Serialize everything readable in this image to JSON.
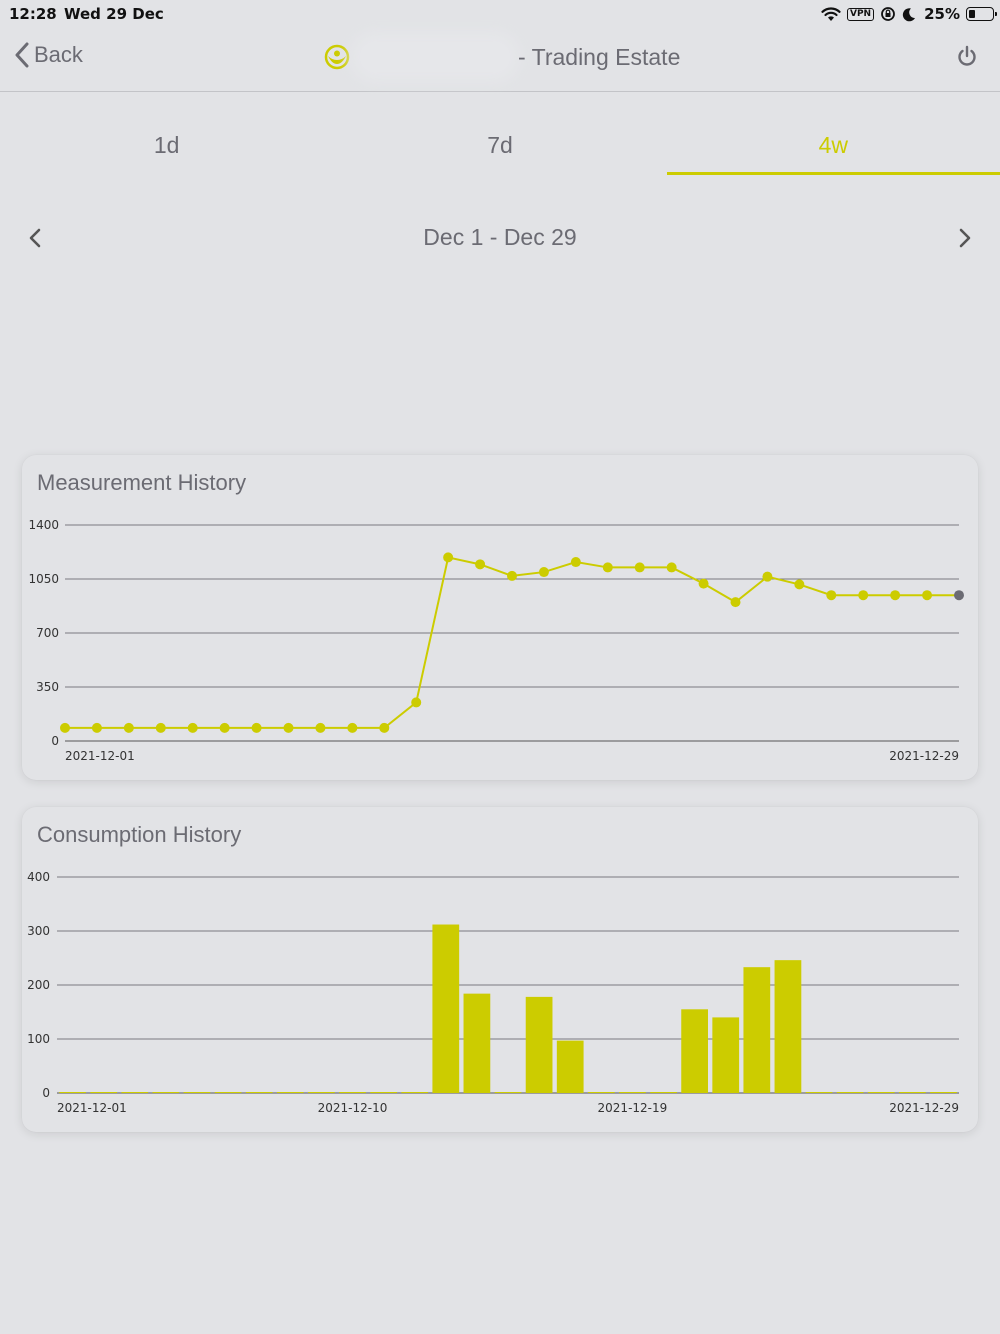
{
  "status_bar": {
    "time": "12:28",
    "date": "Wed 29 Dec",
    "vpn": "VPN",
    "battery_percent": "25%",
    "battery_level": 0.25
  },
  "nav": {
    "back_label": "Back",
    "title_suffix": "- Trading Estate",
    "accent": "#cccc00"
  },
  "tabs": [
    {
      "label": "1d",
      "active": false
    },
    {
      "label": "7d",
      "active": false
    },
    {
      "label": "4w",
      "active": true
    }
  ],
  "range": {
    "label": "Dec 1 - Dec 29"
  },
  "measurement": {
    "title": "Measurement History",
    "chart_data": {
      "type": "line",
      "title": "Measurement History",
      "ylim": [
        0,
        1400
      ],
      "yticks": [
        "0",
        "350",
        "700",
        "1050",
        "1400"
      ],
      "xtick_labels": [
        "2021-12-01",
        "2021-12-29"
      ],
      "x": [
        "2021-12-01",
        "2021-12-02",
        "2021-12-03",
        "2021-12-04",
        "2021-12-05",
        "2021-12-06",
        "2021-12-07",
        "2021-12-08",
        "2021-12-09",
        "2021-12-10",
        "2021-12-11",
        "2021-12-12",
        "2021-12-13",
        "2021-12-14",
        "2021-12-15",
        "2021-12-16",
        "2021-12-17",
        "2021-12-18",
        "2021-12-19",
        "2021-12-20",
        "2021-12-21",
        "2021-12-22",
        "2021-12-23",
        "2021-12-24",
        "2021-12-25",
        "2021-12-26",
        "2021-12-27",
        "2021-12-28",
        "2021-12-29"
      ],
      "values": [
        85,
        85,
        85,
        85,
        85,
        85,
        85,
        85,
        85,
        85,
        85,
        250,
        1190,
        1145,
        1070,
        1095,
        1160,
        1125,
        1125,
        1125,
        1020,
        900,
        1065,
        1015,
        945,
        945,
        945,
        945,
        945
      ],
      "grid": true,
      "line_color": "#cccc00",
      "last_point_color": "#6b6b73"
    }
  },
  "consumption": {
    "title": "Consumption History",
    "chart_data": {
      "type": "bar",
      "title": "Consumption History",
      "ylim": [
        0,
        400
      ],
      "yticks": [
        "0",
        "100",
        "200",
        "300",
        "400"
      ],
      "xtick_labels": [
        "2021-12-01",
        "2021-12-10",
        "2021-12-19",
        "2021-12-29"
      ],
      "categories": [
        "2021-12-01",
        "2021-12-02",
        "2021-12-03",
        "2021-12-04",
        "2021-12-05",
        "2021-12-06",
        "2021-12-07",
        "2021-12-08",
        "2021-12-09",
        "2021-12-10",
        "2021-12-11",
        "2021-12-12",
        "2021-12-13",
        "2021-12-14",
        "2021-12-15",
        "2021-12-16",
        "2021-12-17",
        "2021-12-18",
        "2021-12-19",
        "2021-12-20",
        "2021-12-21",
        "2021-12-22",
        "2021-12-23",
        "2021-12-24",
        "2021-12-25",
        "2021-12-26",
        "2021-12-27",
        "2021-12-28",
        "2021-12-29"
      ],
      "values": [
        0,
        0,
        1,
        1,
        0,
        0,
        0,
        0,
        0,
        1,
        0,
        0,
        312,
        184,
        0,
        178,
        97,
        0,
        0,
        0,
        155,
        140,
        233,
        246,
        0,
        0,
        0,
        1,
        1
      ],
      "grid": true,
      "bar_color": "#cccc00"
    }
  }
}
